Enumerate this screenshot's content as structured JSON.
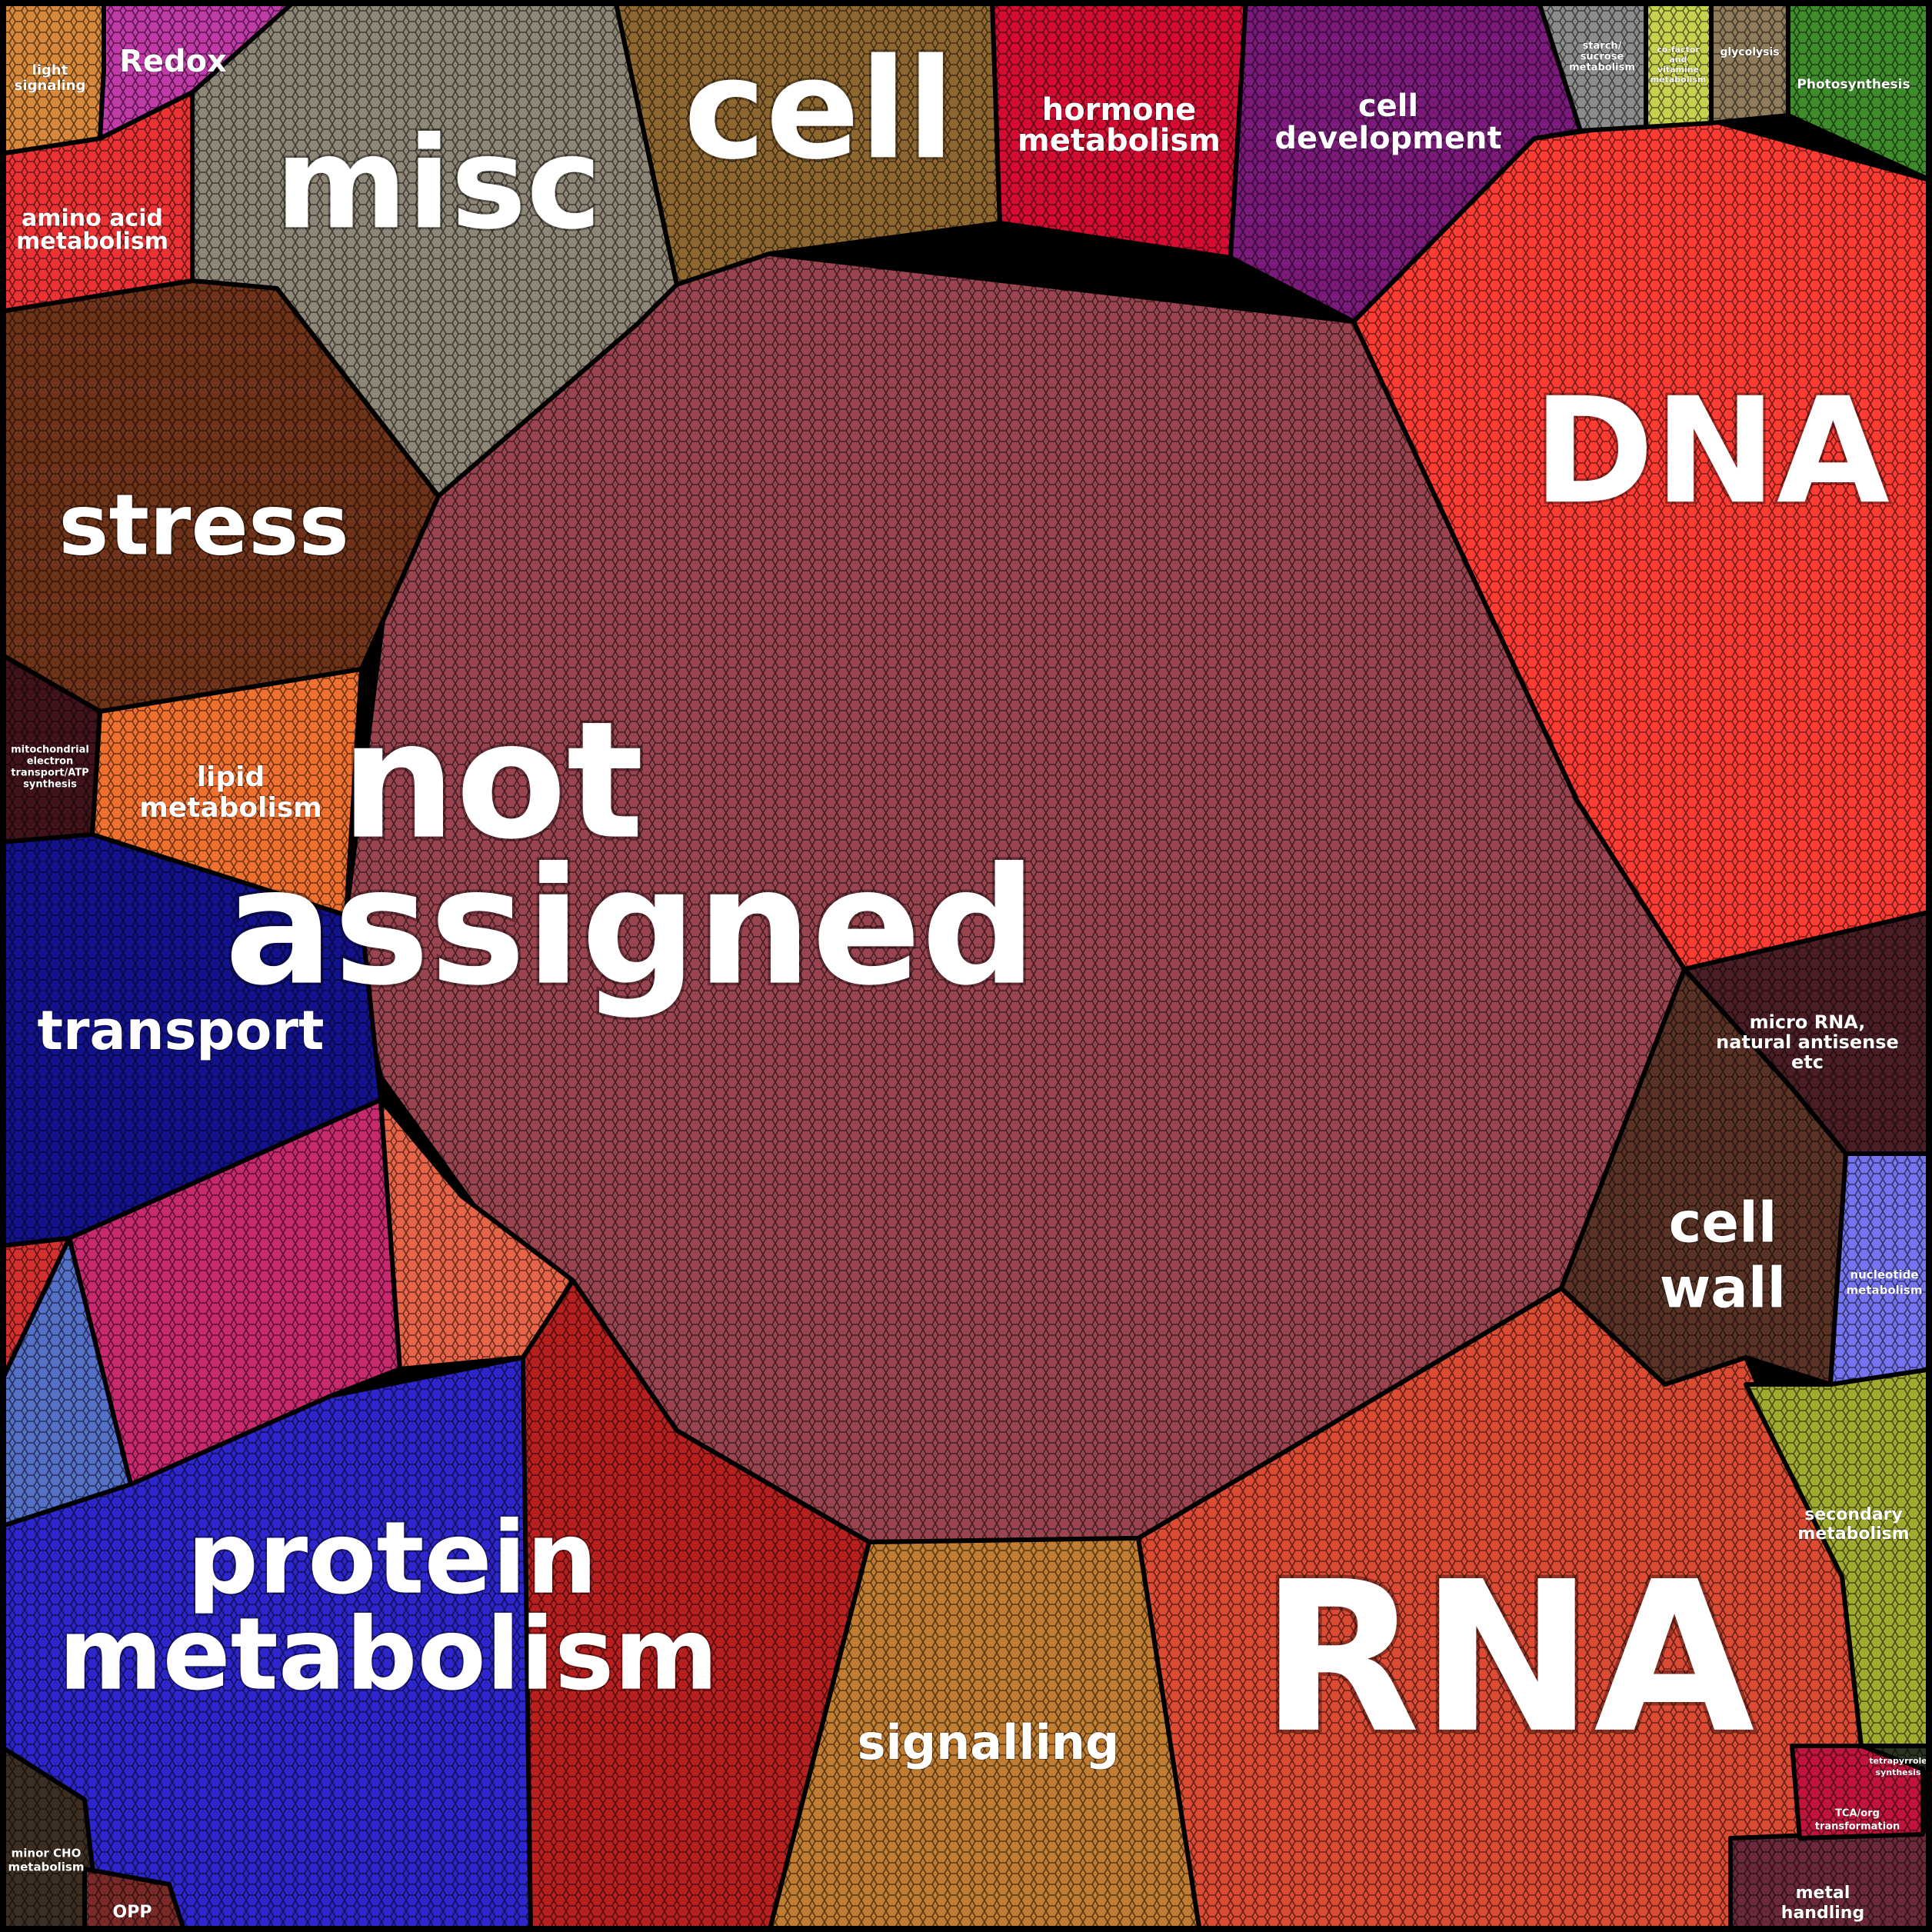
{
  "chart_data": {
    "type": "voronoi-treemap",
    "cells": [
      {
        "label": "not assigned",
        "color": "#9a4450"
      },
      {
        "label": "DNA",
        "color": "#ff3b33"
      },
      {
        "label": "RNA",
        "color": "#dd4b35"
      },
      {
        "label": "protein metabolism",
        "color": "#2c26cc"
      },
      {
        "label": "misc",
        "color": "#8e8676"
      },
      {
        "label": "cell",
        "color": "#8f6730"
      },
      {
        "label": "stress",
        "color": "#6e3318"
      },
      {
        "label": "transport",
        "color": "#12128c"
      },
      {
        "label": "signalling",
        "color": "#c07c30"
      },
      {
        "label": "cell wall",
        "color": "#5a3326"
      },
      {
        "label": "hormone metabolism",
        "color": "#d40c32"
      },
      {
        "label": "cell development",
        "color": "#7a1a7a"
      },
      {
        "label": "micro RNA, natural antisense etc",
        "color": "#4a1e24"
      },
      {
        "label": "lipid metabolism",
        "color": "#f07030"
      },
      {
        "label": "amino acid metabolism",
        "color": "#ec3234"
      },
      {
        "label": "Redox",
        "color": "#c03aa8"
      },
      {
        "label": "light signaling",
        "color": "#d8883a"
      },
      {
        "label": "secondary metabolism",
        "color": "#a0aa30"
      },
      {
        "label": "nucleotide metabolism",
        "color": "#7474f0"
      },
      {
        "label": "Photosynthesis",
        "color": "#3e8c2c"
      },
      {
        "label": "glycolysis",
        "color": "#8e7c5a"
      },
      {
        "label": "co-factor and vitamine metabolism",
        "color": "#c8d050"
      },
      {
        "label": "starch/ sucrose metabolism",
        "color": "#8c8c8c"
      },
      {
        "label": "mitochondrial electron transport/ATP synthesis",
        "color": "#40121a"
      },
      {
        "label": "minor CHO metabolism",
        "color": "#3c2e22"
      },
      {
        "label": "OPP",
        "color": "#7a2a28"
      },
      {
        "label": "metal handling",
        "color": "#6a2838"
      },
      {
        "label": "TCA/org transformation",
        "color": "#c0143c"
      },
      {
        "label": "tetrapyrrole synthesis",
        "color": "#2a3420"
      },
      {
        "label": "",
        "color": "#c8286e"
      },
      {
        "label": "",
        "color": "#e86448"
      },
      {
        "label": "",
        "color": "#b82020"
      },
      {
        "label": "",
        "color": "#5470c8"
      },
      {
        "label": "",
        "color": "#d43030"
      }
    ]
  }
}
